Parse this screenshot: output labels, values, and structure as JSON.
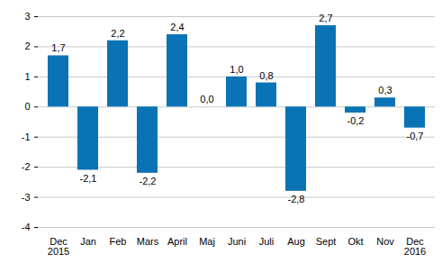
{
  "chart_data": {
    "type": "bar",
    "categories": [
      "Dec\n2015",
      "Jan",
      "Feb",
      "Mars",
      "April",
      "Maj",
      "Juni",
      "Juli",
      "Aug",
      "Sept",
      "Okt",
      "Nov",
      "Dec\n2016"
    ],
    "values": [
      1.7,
      -2.1,
      2.2,
      -2.2,
      2.4,
      0.0,
      1.0,
      0.8,
      -2.8,
      2.7,
      -0.2,
      0.3,
      -0.7
    ],
    "value_labels": [
      "1,7",
      "-2,1",
      "2,2",
      "-2,2",
      "2,4",
      "0,0",
      "1,0",
      "0,8",
      "-2,8",
      "2,7",
      "-0,2",
      "0,3",
      "-0,7"
    ],
    "color": "#0a73b5",
    "ylim": [
      -4,
      3
    ],
    "yticks": [
      -4,
      -3,
      -2,
      -1,
      0,
      1,
      2,
      3
    ],
    "grid": true,
    "data_labels": true
  }
}
